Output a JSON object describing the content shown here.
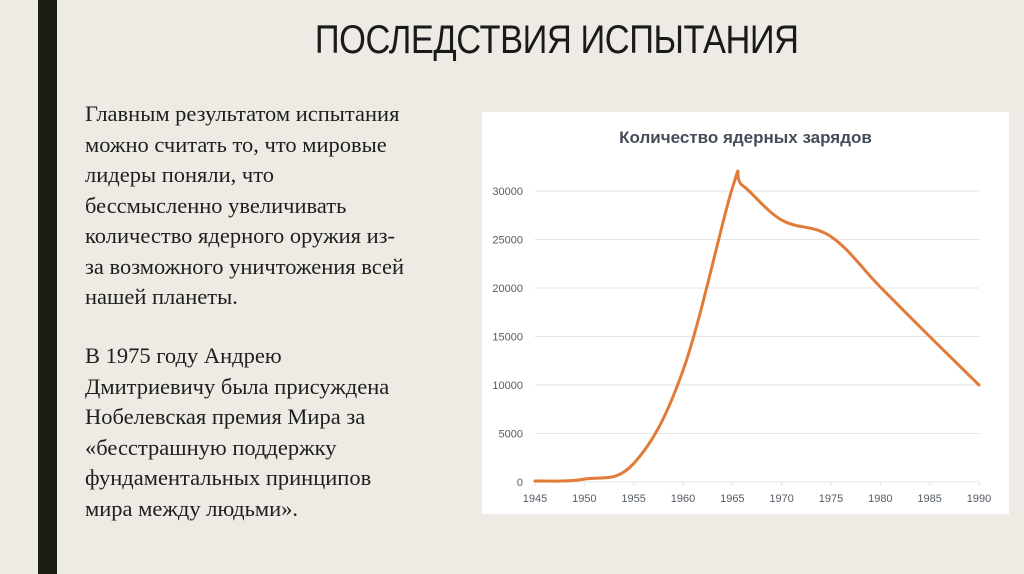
{
  "slide": {
    "title": "ПОСЛЕДСТВИЯ ИСПЫТАНИЯ",
    "paragraph1": [
      "Главным результатом испытания",
      "можно считать то, что мировые",
      "лидеры поняли, что",
      "бессмысленно увеличивать",
      "количество ядерного оружия из-",
      "за возможного уничтожения всей",
      "нашей планеты."
    ],
    "paragraph2": [
      "В 1975 году Андрею",
      "Дмитриевичу была присуждена",
      "Нобелевская премия Мира за",
      "«бесстрашную поддержку",
      "фундаментальных принципов",
      "мира между людьми»."
    ]
  },
  "colors": {
    "background": "#edebe4",
    "left_bar": "#1c1e15",
    "line": "#e07b39",
    "grid": "#e4e4e4"
  },
  "chart_data": {
    "type": "line",
    "title": "Количество ядерных зарядов",
    "xlabel": "",
    "ylabel": "",
    "x": [
      1945,
      1950,
      1955,
      1960,
      1965,
      1966,
      1970,
      1975,
      1980,
      1985,
      1990
    ],
    "series": [
      {
        "name": "Количество ядерных зарядов",
        "values": [
          100,
          300,
          1900,
          11500,
          30300,
          30600,
          27000,
          25300,
          20100,
          15000,
          10000
        ]
      }
    ],
    "xticks": [
      "1945",
      "1950",
      "1955",
      "1960",
      "1965",
      "1970",
      "1975",
      "1980",
      "1985",
      "1990"
    ],
    "yticks": [
      "0",
      "5000",
      "10000",
      "15000",
      "20000",
      "25000",
      "30000"
    ],
    "xlim": [
      1945,
      1990
    ],
    "ylim": [
      0,
      30000
    ],
    "grid": true,
    "legend": false,
    "smooth": true
  }
}
